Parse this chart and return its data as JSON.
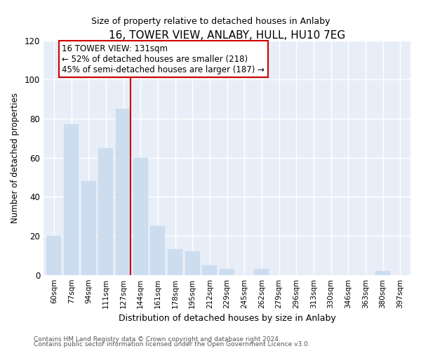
{
  "title": "16, TOWER VIEW, ANLABY, HULL, HU10 7EG",
  "subtitle": "Size of property relative to detached houses in Anlaby",
  "xlabel": "Distribution of detached houses by size in Anlaby",
  "ylabel": "Number of detached properties",
  "categories": [
    "60sqm",
    "77sqm",
    "94sqm",
    "111sqm",
    "127sqm",
    "144sqm",
    "161sqm",
    "178sqm",
    "195sqm",
    "212sqm",
    "229sqm",
    "245sqm",
    "262sqm",
    "279sqm",
    "296sqm",
    "313sqm",
    "330sqm",
    "346sqm",
    "363sqm",
    "380sqm",
    "397sqm"
  ],
  "values": [
    20,
    77,
    48,
    65,
    85,
    60,
    25,
    13,
    12,
    5,
    3,
    0,
    3,
    0,
    0,
    0,
    0,
    0,
    0,
    2,
    0
  ],
  "bar_color": "#ccddf0",
  "bar_edge_color": "#ccddf0",
  "highlight_index": 4,
  "highlight_line_color": "#cc0000",
  "ylim": [
    0,
    120
  ],
  "yticks": [
    0,
    20,
    40,
    60,
    80,
    100,
    120
  ],
  "annotation_title": "16 TOWER VIEW: 131sqm",
  "annotation_line1": "← 52% of detached houses are smaller (218)",
  "annotation_line2": "45% of semi-detached houses are larger (187) →",
  "annotation_box_color": "#ffffff",
  "annotation_box_edge_color": "#cc0000",
  "footer_line1": "Contains HM Land Registry data © Crown copyright and database right 2024.",
  "footer_line2": "Contains public sector information licensed under the Open Government Licence v3.0.",
  "background_color": "#ffffff",
  "plot_background_color": "#e8eef8"
}
